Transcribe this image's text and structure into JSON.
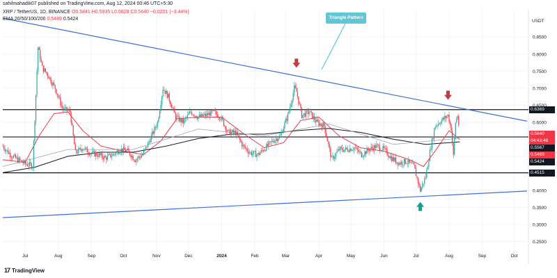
{
  "credit": "sahilmahadik07 published on TradingView.com, Aug 12, 2024 00:46 UTC+5:30",
  "header": {
    "symbol": "XRP / TetherUS, 1D, BINANCE",
    "ohlc": "O0.5841 H0.5935 L0.5628 C0.5640 −0.0201 (−3.44%)",
    "ema_label": "EMA 20/50/100/200",
    "ema_value_1": "0.5489",
    "ema_value_2": "0.5424"
  },
  "branding": {
    "logo_mark": "17",
    "name": "TradingView"
  },
  "annotation": {
    "text": "Triangle Pattern"
  },
  "colors": {
    "up": "#26a69a",
    "down": "#f23645",
    "trendline": "#3d6fd6",
    "ema_fast": "#f23645",
    "ema_slow": "#131722",
    "callout": "#5fc7d8",
    "arrow_down": "#c83a45",
    "arrow_up": "#17a089"
  },
  "chart_data": {
    "type": "candlestick",
    "title": "",
    "currency": "USDT",
    "xlabel": "",
    "ylabel": "",
    "ylim": [
      0.2,
      0.93
    ],
    "y_ticks": [
      0.85,
      0.8,
      0.75,
      0.7,
      0.65,
      0.6,
      0.55,
      0.5,
      0.45,
      0.4,
      0.35,
      0.3,
      0.25
    ],
    "x_range": [
      "2023-06-10",
      "2024-10-13"
    ],
    "x_ticks": [
      {
        "date": "2023-07-01",
        "label": "Jul"
      },
      {
        "date": "2023-08-01",
        "label": "Aug"
      },
      {
        "date": "2023-09-01",
        "label": "Sep"
      },
      {
        "date": "2023-10-01",
        "label": "Oct"
      },
      {
        "date": "2023-11-01",
        "label": "Nov"
      },
      {
        "date": "2023-12-01",
        "label": "Dec"
      },
      {
        "date": "2024-01-01",
        "label": "2024"
      },
      {
        "date": "2024-02-01",
        "label": "Feb"
      },
      {
        "date": "2024-03-01",
        "label": "Mar"
      },
      {
        "date": "2024-04-01",
        "label": "Apr"
      },
      {
        "date": "2024-05-01",
        "label": "May"
      },
      {
        "date": "2024-06-01",
        "label": "Jun"
      },
      {
        "date": "2024-07-01",
        "label": "Jul"
      },
      {
        "date": "2024-08-01",
        "label": "Aug"
      },
      {
        "date": "2024-09-01",
        "label": "Sep"
      },
      {
        "date": "2024-10-01",
        "label": "Oct"
      }
    ],
    "horizontal_levels": [
      0.6369,
      0.5567,
      0.4515
    ],
    "price_tags": [
      {
        "label": "0.6369",
        "value": 0.6369,
        "color": "#131722"
      },
      {
        "label": "0.5640",
        "value": 0.564,
        "color": "#f23645",
        "countdown": "04:43:48"
      },
      {
        "label": "0.5567",
        "value": 0.5567,
        "color": "#131722"
      },
      {
        "label": "0.5489",
        "value": 0.5489,
        "color": "#f23645"
      },
      {
        "label": "0.5424",
        "value": 0.5424,
        "color": "#131722"
      },
      {
        "label": "0.4515",
        "value": 0.4515,
        "color": "#131722"
      }
    ],
    "trendlines": [
      {
        "name": "resistance",
        "from": {
          "date": "2023-06-10",
          "value": 0.905
        },
        "to": {
          "date": "2024-10-13",
          "value": 0.603
        }
      },
      {
        "name": "support",
        "from": {
          "date": "2023-06-10",
          "value": 0.32
        },
        "to": {
          "date": "2024-10-13",
          "value": 0.398
        }
      }
    ],
    "markers": [
      {
        "type": "arrow-down",
        "date": "2024-03-11",
        "value": 0.762
      },
      {
        "type": "arrow-down",
        "date": "2024-07-31",
        "value": 0.668
      },
      {
        "type": "arrow-up",
        "date": "2024-07-05",
        "value": 0.364
      }
    ],
    "series": [
      {
        "kind": "candles",
        "points": [
          {
            "date": "2023-06-10",
            "value": 0.53
          },
          {
            "date": "2023-06-17",
            "value": 0.505
          },
          {
            "date": "2023-06-24",
            "value": 0.49
          },
          {
            "date": "2023-07-01",
            "value": 0.478
          },
          {
            "date": "2023-07-08",
            "value": 0.472
          },
          {
            "date": "2023-07-13",
            "value": 0.82
          },
          {
            "date": "2023-07-17",
            "value": 0.76
          },
          {
            "date": "2023-07-22",
            "value": 0.74
          },
          {
            "date": "2023-07-29",
            "value": 0.7
          },
          {
            "date": "2023-08-05",
            "value": 0.64
          },
          {
            "date": "2023-08-12",
            "value": 0.63
          },
          {
            "date": "2023-08-17",
            "value": 0.51
          },
          {
            "date": "2023-08-24",
            "value": 0.525
          },
          {
            "date": "2023-08-31",
            "value": 0.51
          },
          {
            "date": "2023-09-07",
            "value": 0.505
          },
          {
            "date": "2023-09-14",
            "value": 0.495
          },
          {
            "date": "2023-09-21",
            "value": 0.505
          },
          {
            "date": "2023-09-28",
            "value": 0.52
          },
          {
            "date": "2023-10-05",
            "value": 0.515
          },
          {
            "date": "2023-10-12",
            "value": 0.49
          },
          {
            "date": "2023-10-19",
            "value": 0.505
          },
          {
            "date": "2023-10-26",
            "value": 0.55
          },
          {
            "date": "2023-11-02",
            "value": 0.6
          },
          {
            "date": "2023-11-07",
            "value": 0.7
          },
          {
            "date": "2023-11-12",
            "value": 0.675
          },
          {
            "date": "2023-11-19",
            "value": 0.615
          },
          {
            "date": "2023-11-26",
            "value": 0.6
          },
          {
            "date": "2023-12-03",
            "value": 0.63
          },
          {
            "date": "2023-12-10",
            "value": 0.615
          },
          {
            "date": "2023-12-17",
            "value": 0.62
          },
          {
            "date": "2023-12-24",
            "value": 0.63
          },
          {
            "date": "2023-12-31",
            "value": 0.615
          },
          {
            "date": "2024-01-07",
            "value": 0.57
          },
          {
            "date": "2024-01-14",
            "value": 0.57
          },
          {
            "date": "2024-01-21",
            "value": 0.53
          },
          {
            "date": "2024-01-28",
            "value": 0.51
          },
          {
            "date": "2024-02-04",
            "value": 0.505
          },
          {
            "date": "2024-02-11",
            "value": 0.525
          },
          {
            "date": "2024-02-18",
            "value": 0.545
          },
          {
            "date": "2024-02-25",
            "value": 0.56
          },
          {
            "date": "2024-03-03",
            "value": 0.62
          },
          {
            "date": "2024-03-09",
            "value": 0.7
          },
          {
            "date": "2024-03-11",
            "value": 0.69
          },
          {
            "date": "2024-03-16",
            "value": 0.62
          },
          {
            "date": "2024-03-23",
            "value": 0.63
          },
          {
            "date": "2024-03-30",
            "value": 0.6
          },
          {
            "date": "2024-04-06",
            "value": 0.59
          },
          {
            "date": "2024-04-13",
            "value": 0.49
          },
          {
            "date": "2024-04-20",
            "value": 0.52
          },
          {
            "date": "2024-04-27",
            "value": 0.52
          },
          {
            "date": "2024-05-04",
            "value": 0.525
          },
          {
            "date": "2024-05-11",
            "value": 0.505
          },
          {
            "date": "2024-05-18",
            "value": 0.52
          },
          {
            "date": "2024-05-25",
            "value": 0.53
          },
          {
            "date": "2024-06-01",
            "value": 0.52
          },
          {
            "date": "2024-06-08",
            "value": 0.495
          },
          {
            "date": "2024-06-15",
            "value": 0.48
          },
          {
            "date": "2024-06-22",
            "value": 0.485
          },
          {
            "date": "2024-06-29",
            "value": 0.47
          },
          {
            "date": "2024-07-05",
            "value": 0.4
          },
          {
            "date": "2024-07-10",
            "value": 0.44
          },
          {
            "date": "2024-07-15",
            "value": 0.53
          },
          {
            "date": "2024-07-19",
            "value": 0.59
          },
          {
            "date": "2024-07-23",
            "value": 0.6
          },
          {
            "date": "2024-07-27",
            "value": 0.61
          },
          {
            "date": "2024-07-31",
            "value": 0.62
          },
          {
            "date": "2024-08-03",
            "value": 0.58
          },
          {
            "date": "2024-08-05",
            "value": 0.5
          },
          {
            "date": "2024-08-07",
            "value": 0.6
          },
          {
            "date": "2024-08-09",
            "value": 0.62
          },
          {
            "date": "2024-08-11",
            "value": 0.564
          }
        ]
      },
      {
        "kind": "ema-fast",
        "points": [
          {
            "date": "2023-06-10",
            "value": 0.49
          },
          {
            "date": "2023-07-01",
            "value": 0.482
          },
          {
            "date": "2023-07-14",
            "value": 0.56
          },
          {
            "date": "2023-07-28",
            "value": 0.625
          },
          {
            "date": "2023-08-10",
            "value": 0.63
          },
          {
            "date": "2023-08-24",
            "value": 0.575
          },
          {
            "date": "2023-09-10",
            "value": 0.53
          },
          {
            "date": "2023-10-01",
            "value": 0.515
          },
          {
            "date": "2023-10-20",
            "value": 0.505
          },
          {
            "date": "2023-11-05",
            "value": 0.545
          },
          {
            "date": "2023-11-20",
            "value": 0.61
          },
          {
            "date": "2023-12-10",
            "value": 0.615
          },
          {
            "date": "2024-01-01",
            "value": 0.615
          },
          {
            "date": "2024-01-20",
            "value": 0.57
          },
          {
            "date": "2024-02-10",
            "value": 0.525
          },
          {
            "date": "2024-02-28",
            "value": 0.54
          },
          {
            "date": "2024-03-15",
            "value": 0.605
          },
          {
            "date": "2024-04-01",
            "value": 0.615
          },
          {
            "date": "2024-04-20",
            "value": 0.56
          },
          {
            "date": "2024-05-10",
            "value": 0.525
          },
          {
            "date": "2024-06-01",
            "value": 0.515
          },
          {
            "date": "2024-06-25",
            "value": 0.49
          },
          {
            "date": "2024-07-08",
            "value": 0.47
          },
          {
            "date": "2024-07-20",
            "value": 0.52
          },
          {
            "date": "2024-08-01",
            "value": 0.575
          },
          {
            "date": "2024-08-11",
            "value": 0.5489
          }
        ]
      },
      {
        "kind": "ema-slow",
        "points": [
          {
            "date": "2023-06-10",
            "value": 0.452
          },
          {
            "date": "2023-07-10",
            "value": 0.468
          },
          {
            "date": "2023-08-10",
            "value": 0.5
          },
          {
            "date": "2023-09-10",
            "value": 0.512
          },
          {
            "date": "2023-10-10",
            "value": 0.512
          },
          {
            "date": "2023-11-10",
            "value": 0.53
          },
          {
            "date": "2023-12-10",
            "value": 0.552
          },
          {
            "date": "2024-01-10",
            "value": 0.565
          },
          {
            "date": "2024-02-10",
            "value": 0.565
          },
          {
            "date": "2024-03-10",
            "value": 0.575
          },
          {
            "date": "2024-04-10",
            "value": 0.582
          },
          {
            "date": "2024-05-10",
            "value": 0.57
          },
          {
            "date": "2024-06-10",
            "value": 0.55
          },
          {
            "date": "2024-07-10",
            "value": 0.535
          },
          {
            "date": "2024-08-11",
            "value": 0.5424
          }
        ]
      },
      {
        "kind": "ema-mid",
        "points": [
          {
            "date": "2023-06-10",
            "value": 0.47
          },
          {
            "date": "2023-08-10",
            "value": 0.52
          },
          {
            "date": "2023-10-10",
            "value": 0.52
          },
          {
            "date": "2023-12-10",
            "value": 0.58
          },
          {
            "date": "2024-02-10",
            "value": 0.56
          },
          {
            "date": "2024-04-10",
            "value": 0.595
          },
          {
            "date": "2024-06-10",
            "value": 0.535
          },
          {
            "date": "2024-08-11",
            "value": 0.553
          }
        ]
      }
    ]
  }
}
